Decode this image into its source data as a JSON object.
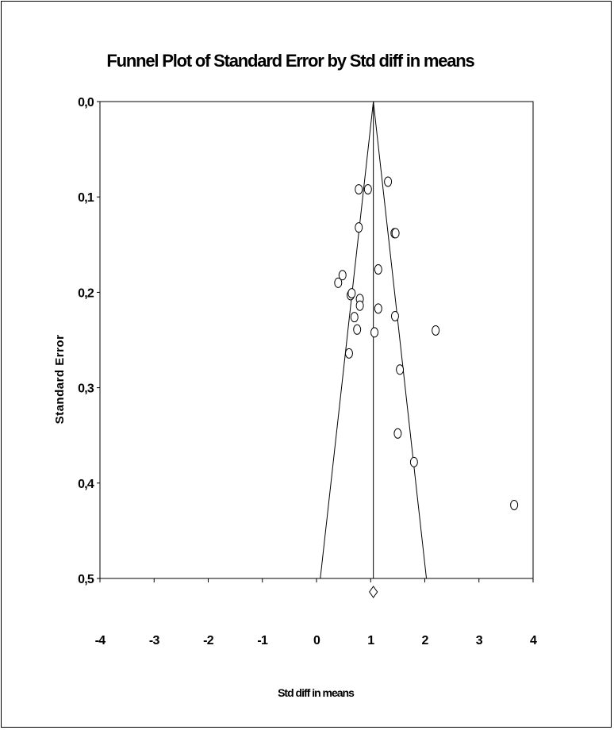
{
  "chart_data": {
    "type": "scatter",
    "title": "Funnel Plot of Standard Error by Std diff in means",
    "xlabel": "Std diff in means",
    "ylabel": "Standard Error",
    "xlim": [
      -4,
      4
    ],
    "ylim": [
      0.0,
      0.5
    ],
    "y_inverted": true,
    "x_ticks": [
      "-4",
      "-3",
      "-2",
      "-1",
      "0",
      "1",
      "2",
      "3",
      "4"
    ],
    "y_ticks": [
      "0,0",
      "0,1",
      "0,2",
      "0,3",
      "0,4",
      "0,5"
    ],
    "pooled_estimate": 1.05,
    "funnel": {
      "center": 1.05,
      "apex_se": 0.0,
      "base_se": 0.5,
      "base_lower": 0.07,
      "base_upper": 2.03
    },
    "points": [
      {
        "x": 0.78,
        "y": 0.092
      },
      {
        "x": 0.95,
        "y": 0.092
      },
      {
        "x": 1.32,
        "y": 0.084
      },
      {
        "x": 0.78,
        "y": 0.132
      },
      {
        "x": 1.44,
        "y": 0.138
      },
      {
        "x": 1.46,
        "y": 0.138
      },
      {
        "x": 1.14,
        "y": 0.176
      },
      {
        "x": 0.48,
        "y": 0.182
      },
      {
        "x": 0.4,
        "y": 0.19
      },
      {
        "x": 0.63,
        "y": 0.203
      },
      {
        "x": 0.65,
        "y": 0.201
      },
      {
        "x": 0.8,
        "y": 0.207
      },
      {
        "x": 0.8,
        "y": 0.214
      },
      {
        "x": 0.7,
        "y": 0.226
      },
      {
        "x": 1.14,
        "y": 0.217
      },
      {
        "x": 1.45,
        "y": 0.225
      },
      {
        "x": 0.75,
        "y": 0.239
      },
      {
        "x": 1.07,
        "y": 0.242
      },
      {
        "x": 2.2,
        "y": 0.24
      },
      {
        "x": 0.6,
        "y": 0.264
      },
      {
        "x": 1.54,
        "y": 0.281
      },
      {
        "x": 1.5,
        "y": 0.348
      },
      {
        "x": 1.8,
        "y": 0.378
      },
      {
        "x": 3.65,
        "y": 0.423
      }
    ]
  }
}
